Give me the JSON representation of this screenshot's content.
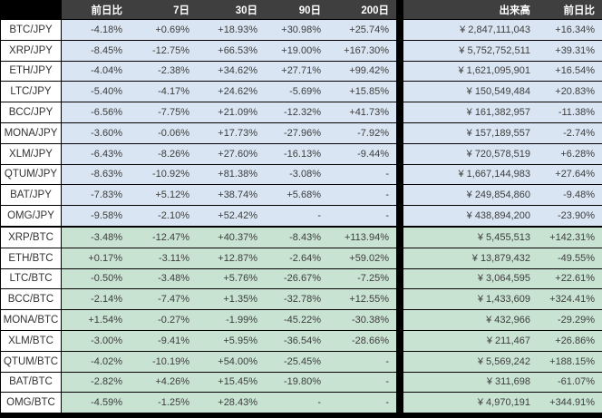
{
  "header": {
    "columns": [
      "前日比",
      "7日",
      "30日",
      "90日",
      "200日"
    ],
    "col_volume": "出来高",
    "col_volume_change": "前日比"
  },
  "colors": {
    "header_bg": "#3f3f3f",
    "header_text": "#ffffff",
    "jpy_row_bg": "#d9e5f2",
    "btc_row_bg": "#c9e3d3",
    "label_bg": "#ffffff",
    "divider": "#000000",
    "cell_text": "#3d3d3d"
  },
  "rows": [
    {
      "pair": "BTC/JPY",
      "group": "jpy",
      "day1": "-4.18%",
      "d7": "+0.69%",
      "d30": "+18.93%",
      "d90": "+30.98%",
      "d200": "+25.74%",
      "volume": "¥ 2,847,111,043",
      "vol_change": "+16.34%"
    },
    {
      "pair": "XRP/JPY",
      "group": "jpy",
      "day1": "-8.45%",
      "d7": "-12.75%",
      "d30": "+66.53%",
      "d90": "+19.00%",
      "d200": "+167.30%",
      "volume": "¥ 5,752,752,511",
      "vol_change": "+39.31%"
    },
    {
      "pair": "ETH/JPY",
      "group": "jpy",
      "day1": "-4.04%",
      "d7": "-2.38%",
      "d30": "+34.62%",
      "d90": "+27.71%",
      "d200": "+99.42%",
      "volume": "¥ 1,621,095,901",
      "vol_change": "+16.54%"
    },
    {
      "pair": "LTC/JPY",
      "group": "jpy",
      "day1": "-5.40%",
      "d7": "-4.17%",
      "d30": "+24.62%",
      "d90": "-5.69%",
      "d200": "+15.85%",
      "volume": "¥ 150,549,484",
      "vol_change": "+20.83%"
    },
    {
      "pair": "BCC/JPY",
      "group": "jpy",
      "day1": "-6.56%",
      "d7": "-7.75%",
      "d30": "+21.09%",
      "d90": "-12.32%",
      "d200": "+41.73%",
      "volume": "¥ 161,382,957",
      "vol_change": "-11.38%"
    },
    {
      "pair": "MONA/JPY",
      "group": "jpy",
      "day1": "-3.60%",
      "d7": "-0.06%",
      "d30": "+17.73%",
      "d90": "-27.96%",
      "d200": "-7.92%",
      "volume": "¥ 157,189,557",
      "vol_change": "-2.74%"
    },
    {
      "pair": "XLM/JPY",
      "group": "jpy",
      "day1": "-6.43%",
      "d7": "-8.26%",
      "d30": "+27.60%",
      "d90": "-16.13%",
      "d200": "-9.44%",
      "volume": "¥ 720,578,519",
      "vol_change": "+6.28%"
    },
    {
      "pair": "QTUM/JPY",
      "group": "jpy",
      "day1": "-8.63%",
      "d7": "-10.92%",
      "d30": "+81.38%",
      "d90": "-3.08%",
      "d200": "-",
      "volume": "¥ 1,667,144,983",
      "vol_change": "+27.64%"
    },
    {
      "pair": "BAT/JPY",
      "group": "jpy",
      "day1": "-7.83%",
      "d7": "+5.12%",
      "d30": "+38.74%",
      "d90": "+5.68%",
      "d200": "-",
      "volume": "¥ 249,854,860",
      "vol_change": "-9.48%"
    },
    {
      "pair": "OMG/JPY",
      "group": "jpy",
      "day1": "-9.58%",
      "d7": "-2.10%",
      "d30": "+52.42%",
      "d90": "-",
      "d200": "-",
      "volume": "¥ 438,894,200",
      "vol_change": "-23.90%"
    },
    {
      "pair": "XRP/BTC",
      "group": "btc",
      "day1": "-3.48%",
      "d7": "-12.47%",
      "d30": "+40.37%",
      "d90": "-8.43%",
      "d200": "+113.94%",
      "volume": "¥ 5,455,513",
      "vol_change": "+142.31%"
    },
    {
      "pair": "ETH/BTC",
      "group": "btc",
      "day1": "+0.17%",
      "d7": "-3.11%",
      "d30": "+12.87%",
      "d90": "-2.64%",
      "d200": "+59.02%",
      "volume": "¥ 13,879,432",
      "vol_change": "-49.55%"
    },
    {
      "pair": "LTC/BTC",
      "group": "btc",
      "day1": "-0.50%",
      "d7": "-3.48%",
      "d30": "+5.76%",
      "d90": "-26.67%",
      "d200": "-7.25%",
      "volume": "¥ 3,064,595",
      "vol_change": "+22.61%"
    },
    {
      "pair": "BCC/BTC",
      "group": "btc",
      "day1": "-2.14%",
      "d7": "-7.47%",
      "d30": "+1.35%",
      "d90": "-32.78%",
      "d200": "+12.55%",
      "volume": "¥ 1,433,609",
      "vol_change": "+324.41%"
    },
    {
      "pair": "MONA/BTC",
      "group": "btc",
      "day1": "+1.54%",
      "d7": "-0.27%",
      "d30": "-1.99%",
      "d90": "-45.22%",
      "d200": "-30.38%",
      "volume": "¥ 432,966",
      "vol_change": "-29.29%"
    },
    {
      "pair": "XLM/BTC",
      "group": "btc",
      "day1": "-3.00%",
      "d7": "-9.41%",
      "d30": "+5.95%",
      "d90": "-36.54%",
      "d200": "-28.66%",
      "volume": "¥ 211,467",
      "vol_change": "+26.86%"
    },
    {
      "pair": "QTUM/BTC",
      "group": "btc",
      "day1": "-4.02%",
      "d7": "-10.19%",
      "d30": "+54.00%",
      "d90": "-25.45%",
      "d200": "-",
      "volume": "¥ 5,569,242",
      "vol_change": "+188.15%"
    },
    {
      "pair": "BAT/BTC",
      "group": "btc",
      "day1": "-2.82%",
      "d7": "+4.26%",
      "d30": "+15.45%",
      "d90": "-19.80%",
      "d200": "-",
      "volume": "¥ 311,698",
      "vol_change": "-61.07%"
    },
    {
      "pair": "OMG/BTC",
      "group": "btc",
      "day1": "-4.59%",
      "d7": "-1.25%",
      "d30": "+28.43%",
      "d90": "-",
      "d200": "-",
      "volume": "¥ 4,970,191",
      "vol_change": "+344.91%"
    }
  ]
}
